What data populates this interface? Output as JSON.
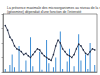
{
  "chart_data": {
    "type": "bar",
    "title": "La présence maximale des microorganismes au niveau de la surface du sol\n(géosmine) dépendait d'une fonction de l'intensité",
    "x": [
      1,
      2,
      3,
      4,
      5,
      6,
      7,
      8,
      9,
      10,
      11,
      12,
      13,
      14,
      15,
      16,
      17,
      18,
      19,
      20,
      21,
      22,
      23,
      24,
      25,
      26,
      27,
      28,
      29,
      30,
      31,
      32,
      33,
      34,
      35,
      36,
      37,
      38,
      39,
      40
    ],
    "xlim": [
      0,
      41
    ],
    "ylim": [
      0,
      100
    ],
    "yticks": [
      0,
      25,
      50,
      75,
      100
    ],
    "grid": false,
    "tick_labels": false,
    "series": [
      {
        "type": "bar",
        "color": "#3f8fd6",
        "values": [
          5,
          0,
          12,
          30,
          8,
          0,
          45,
          3,
          0,
          20,
          0,
          60,
          10,
          0,
          0,
          35,
          4,
          0,
          55,
          15,
          0,
          8,
          25,
          0,
          70,
          5,
          0,
          18,
          40,
          0,
          10,
          0,
          65,
          20,
          0,
          30,
          5,
          50,
          0,
          12
        ]
      },
      {
        "type": "line",
        "color": "#1f2a44",
        "marker": "circle",
        "values": [
          80,
          72,
          60,
          55,
          45,
          40,
          38,
          35,
          30,
          32,
          28,
          25,
          30,
          35,
          40,
          38,
          32,
          28,
          25,
          22,
          20,
          30,
          45,
          55,
          50,
          40,
          35,
          30,
          28,
          25,
          30,
          40,
          48,
          45,
          38,
          32,
          30,
          35,
          40,
          38
        ]
      }
    ]
  }
}
